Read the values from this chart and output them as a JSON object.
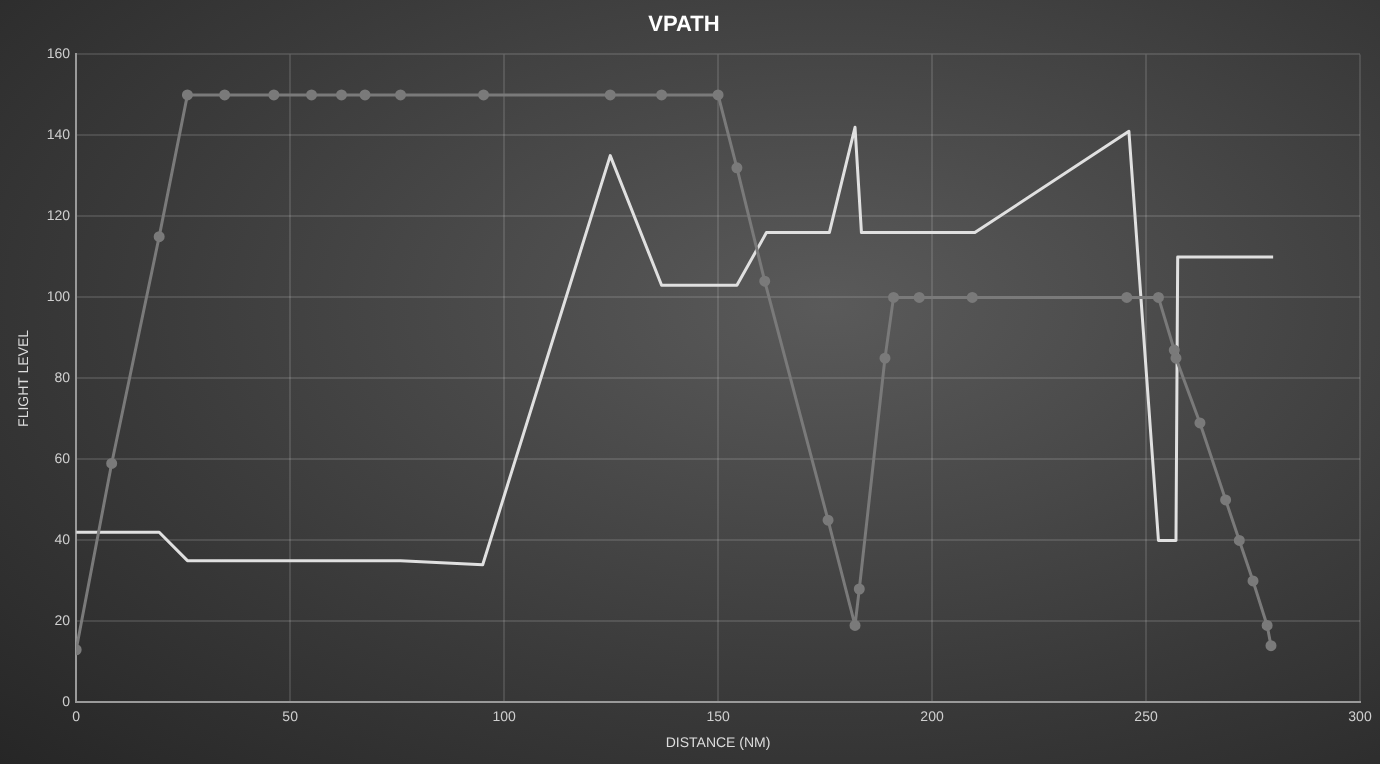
{
  "chart_data": {
    "type": "line",
    "title": "VPATH",
    "xlabel": "DISTANCE (NM)",
    "ylabel": "FLIGHT LEVEL",
    "xlim": [
      0,
      300
    ],
    "xticks": [
      0,
      50,
      100,
      150,
      200,
      250,
      300
    ],
    "ylim": [
      0,
      160
    ],
    "yticks": [
      0,
      20,
      40,
      60,
      80,
      100,
      120,
      140,
      160
    ],
    "grid": true,
    "legend": false,
    "series": [
      {
        "color": "#7a7a7a",
        "marker": "circle",
        "x": [
          0,
          8.3,
          19.4,
          26,
          34.7,
          46.2,
          55,
          62,
          67.5,
          75.8,
          95.2,
          124.8,
          136.8,
          150,
          154.4,
          160.9,
          175.7,
          182,
          183,
          189,
          191,
          197,
          209.4,
          245.5,
          252.9,
          256.6,
          257,
          262.6,
          268.6,
          271.8,
          275,
          278.3,
          279.2
        ],
        "values": [
          13,
          59,
          115,
          150,
          150,
          150,
          150,
          150,
          150,
          150,
          150,
          150,
          150,
          150,
          132,
          104,
          45,
          19,
          28,
          85,
          100,
          100,
          100,
          100,
          100,
          87,
          85,
          69,
          50,
          40,
          30,
          19,
          14
        ]
      },
      {
        "color": "#e0e0e0",
        "marker": "none",
        "x": [
          0,
          19.4,
          26,
          75.8,
          95,
          124.8,
          136.8,
          154.4,
          161.3,
          176,
          182,
          183.5,
          210,
          246,
          252.9,
          257,
          257.4,
          279.7
        ],
        "values": [
          42,
          42,
          35,
          35,
          34,
          135,
          103,
          103,
          116,
          116,
          142,
          116,
          116,
          141,
          40,
          40,
          110,
          110
        ]
      }
    ]
  }
}
